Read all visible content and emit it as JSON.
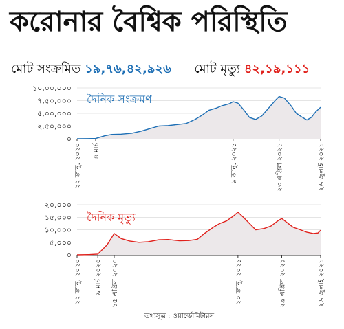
{
  "title": "করোনার বৈশ্বিক পরিস্থিতি",
  "summary": {
    "cases_label": "মোট সংক্রমিত",
    "cases_value": "১৯,৭৬,৪২,৯২৬",
    "deaths_label": "মোট মৃত্যু",
    "deaths_value": "৪২,১৯,১১১"
  },
  "source": "তথ্যসূত্র : ওয়ার্ল্ডোমিটারস",
  "colors": {
    "cases": "#1e6fb5",
    "deaths": "#e0201b",
    "fill": "#ece8ea",
    "axis": "#333333"
  },
  "chart_data": [
    {
      "type": "line",
      "title": "দৈনিক সংক্রমণ",
      "ylim": [
        0,
        1000000
      ],
      "yticks": [
        0,
        250000,
        500000,
        750000,
        1000000
      ],
      "ytick_labels": [
        "০",
        "২,৫০,০০০",
        "৫,০০,০০০",
        "৭,৫০,০০০",
        "১০,০০,০০০"
      ],
      "xlim": [
        "2020-01-22",
        "2021-07-26"
      ],
      "xticks": [
        "2020-01-22",
        "2020-03-04",
        "2021-01-09",
        "2021-04-23",
        "2021-07-26"
      ],
      "xtick_labels": [
        "২২ জানু. ২০২০",
        "৪ মার্চ",
        "৯ জানু. ২০২১",
        "২৩ এপ্রিল ২০২১",
        "২৬ জুলাই ২০২১"
      ],
      "series": [
        {
          "name": "দৈনিক সংক্রমণ",
          "x": [
            "2020-01-22",
            "2020-02-15",
            "2020-03-04",
            "2020-03-25",
            "2020-04-10",
            "2020-05-01",
            "2020-05-25",
            "2020-06-15",
            "2020-07-05",
            "2020-07-25",
            "2020-08-15",
            "2020-09-05",
            "2020-09-25",
            "2020-10-15",
            "2020-11-01",
            "2020-11-15",
            "2020-12-01",
            "2020-12-15",
            "2021-01-01",
            "2021-01-09",
            "2021-01-20",
            "2021-02-01",
            "2021-02-15",
            "2021-03-01",
            "2021-03-15",
            "2021-04-01",
            "2021-04-15",
            "2021-04-23",
            "2021-05-05",
            "2021-05-20",
            "2021-06-01",
            "2021-06-15",
            "2021-06-25",
            "2021-07-05",
            "2021-07-15",
            "2021-07-26"
          ],
          "values": [
            0,
            3000,
            5000,
            60000,
            85000,
            90000,
            110000,
            150000,
            200000,
            250000,
            260000,
            280000,
            300000,
            380000,
            470000,
            560000,
            600000,
            650000,
            690000,
            730000,
            700000,
            580000,
            420000,
            380000,
            450000,
            620000,
            760000,
            830000,
            800000,
            650000,
            500000,
            420000,
            370000,
            420000,
            530000,
            620000
          ]
        }
      ]
    },
    {
      "type": "line",
      "title": "দৈনিক মৃত্যু",
      "ylim": [
        0,
        20000
      ],
      "yticks": [
        0,
        5000,
        10000,
        15000,
        20000
      ],
      "ytick_labels": [
        "০",
        "৫,০০০",
        "১০,০০০",
        "১৫,০০০",
        "২০,০০০"
      ],
      "xlim": [
        "2020-01-22",
        "2021-07-26"
      ],
      "xticks": [
        "2020-01-22",
        "2020-03-09",
        "2020-04-15",
        "2021-01-20",
        "2021-04-29",
        "2021-07-26"
      ],
      "xtick_labels": [
        "২২ জানু. ২০২০",
        "৯ মার্চ ২০২০",
        "১৫ এপ্রিল ২০২০",
        "২০ জানু. ২০২১",
        "২৯ এপ্রিল ২০২১",
        "২৬ জুলাই ২০২১"
      ],
      "series": [
        {
          "name": "দৈনিক মৃত্যু",
          "x": [
            "2020-01-22",
            "2020-02-20",
            "2020-03-09",
            "2020-03-30",
            "2020-04-15",
            "2020-05-01",
            "2020-05-20",
            "2020-06-10",
            "2020-07-01",
            "2020-07-25",
            "2020-08-15",
            "2020-09-10",
            "2020-10-01",
            "2020-10-20",
            "2020-11-05",
            "2020-11-25",
            "2020-12-10",
            "2020-12-25",
            "2021-01-10",
            "2021-01-20",
            "2021-02-01",
            "2021-02-15",
            "2021-03-01",
            "2021-03-20",
            "2021-04-05",
            "2021-04-20",
            "2021-04-29",
            "2021-05-10",
            "2021-05-25",
            "2021-06-10",
            "2021-06-25",
            "2021-07-10",
            "2021-07-20",
            "2021-07-26"
          ],
          "values": [
            0,
            100,
            300,
            4000,
            8500,
            6500,
            5500,
            5000,
            5200,
            6000,
            6100,
            5600,
            5700,
            6200,
            8500,
            11000,
            12500,
            13500,
            15500,
            17000,
            15000,
            12500,
            10000,
            10500,
            11500,
            13500,
            14500,
            13000,
            11000,
            10000,
            9000,
            8500,
            8700,
            9800
          ]
        }
      ]
    }
  ]
}
